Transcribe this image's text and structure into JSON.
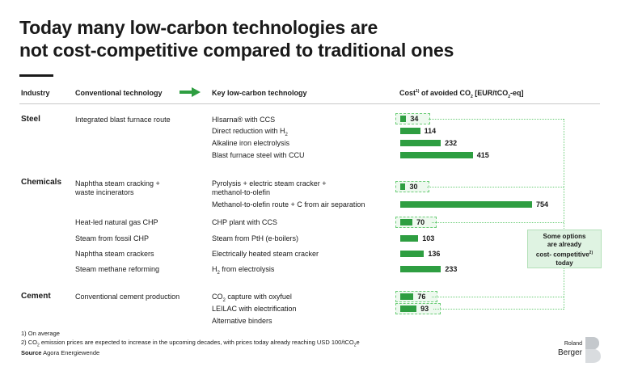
{
  "title": {
    "line1": "Today many low-carbon technologies are",
    "line2": "not cost-competitive compared to traditional ones"
  },
  "headers": {
    "industry": "Industry",
    "conventional": "Conventional technology",
    "key": "Key low-carbon technology",
    "cost_prefix": "Cost",
    "cost_sup": "1)",
    "cost_mid": " of avoided CO",
    "cost_sub": "2",
    "cost_suffix": " [EUR/tCO",
    "cost_sub2": "2",
    "cost_end": "-eq]"
  },
  "industries": [
    "Steel",
    "Chemicals",
    "Cement"
  ],
  "conventional": [
    "Integrated blast furnace route",
    "Naphtha steam cracking +",
    "waste incinerators",
    "Heat-led natural gas CHP",
    "Steam from fossil CHP",
    "Naphtha steam crackers",
    "Steam methane reforming",
    "Conventional cement production"
  ],
  "tech": [
    "HIsarna® with CCS",
    "Direct reduction with H",
    "Alkaline iron electrolysis",
    "Blast furnace steel with CCU",
    "Pyrolysis + electric steam cracker +",
    "methanol-to-olefin",
    "Methanol-to-olefin route + C from air separation",
    "CHP plant with CCS",
    "Steam from PtH (e-boilers)",
    "Electrically heated steam cracker",
    "H",
    " from electrolysis",
    "CO",
    " capture with oxyfuel",
    "LEILAC with electrification",
    "Alternative binders",
    "2"
  ],
  "chart_data": {
    "type": "bar",
    "orientation": "horizontal",
    "categories": [
      "HIsarna® with CCS",
      "Direct reduction with H2",
      "Alkaline iron electrolysis",
      "Blast furnace steel with CCU",
      "Pyrolysis + electric steam cracker + methanol-to-olefin",
      "Methanol-to-olefin route + C from air separation",
      "CHP plant with CCS",
      "Steam from PtH (e-boilers)",
      "Electrically heated steam cracker",
      "H2 from electrolysis",
      "CO2 capture with oxyfuel",
      "LEILAC with electrification",
      "Alternative binders"
    ],
    "values": [
      34,
      114,
      232,
      415,
      30,
      754,
      70,
      103,
      136,
      233,
      76,
      93,
      null
    ],
    "labels": [
      "34",
      "114",
      "232",
      "415",
      "30",
      "754",
      "70",
      "103",
      "136",
      "233",
      "76",
      "93",
      ""
    ],
    "cost_competitive": [
      true,
      false,
      false,
      false,
      true,
      false,
      true,
      false,
      false,
      false,
      true,
      true,
      false
    ],
    "xlim": [
      0,
      754
    ],
    "xlabel": "Cost of avoided CO2 [EUR/tCO2-eq]",
    "bar_color": "#2e9e41",
    "highlight_color": "#6ccd78"
  },
  "note": {
    "line1": "Some options",
    "line2": "are already",
    "line3": "cost- competitive",
    "line3_sup": "2)",
    "line4": "today"
  },
  "footnotes": {
    "f1": "1)  On average",
    "f2_a": "2)  CO",
    "f2_sub": "2",
    "f2_b": " emission prices are expected to increase in the upcoming decades, with prices today already reaching USD 100/tCO",
    "f2_sub2": "2",
    "f2_c": "e",
    "source_label": "Source",
    "source_text": " Agora Energiewende"
  },
  "logo": {
    "small": "Roland",
    "big": "Berger"
  }
}
